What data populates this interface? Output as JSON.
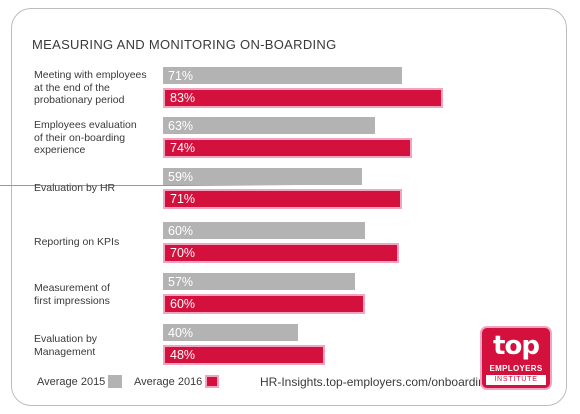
{
  "chart_data": {
    "type": "bar",
    "orientation": "horizontal",
    "title": "MEASURING AND MONITORING ON-BOARDING",
    "categories": [
      "Meeting with employees\nat the end of the\nprobationary period",
      "Employees evaluation\nof their on-boarding\nexperience",
      "Evaluation by HR",
      "Reporting on KPIs",
      "Measurement of\nfirst impressions",
      "Evaluation by\nManagement"
    ],
    "series": [
      {
        "name": "Average 2015",
        "color": "#b3b3b3",
        "values": [
          71,
          63,
          59,
          60,
          57,
          40
        ],
        "labels": [
          "71%",
          "63%",
          "59%",
          "60%",
          "57%",
          "40%"
        ]
      },
      {
        "name": "Average 2016",
        "color": "#d3113c",
        "values": [
          83,
          74,
          71,
          70,
          60,
          48
        ],
        "labels": [
          "83%",
          "74%",
          "71%",
          "70%",
          "60%",
          "48%"
        ]
      }
    ],
    "xlim": [
      0,
      100
    ],
    "grid": false,
    "legend_placement": "bottom-left"
  },
  "footer": {
    "source": "HR-Insights.top-employers.com/onboarding"
  },
  "logo": {
    "word": "top",
    "line1": "EMPLOYERS",
    "line2": "INSTITUTE",
    "color": "#d3113c"
  }
}
